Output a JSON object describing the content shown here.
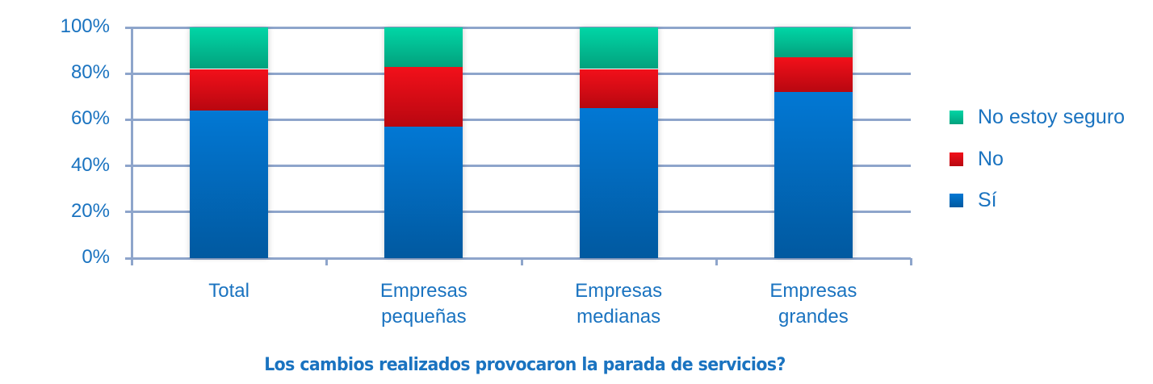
{
  "chart_data": {
    "type": "bar",
    "stacked": true,
    "percent": true,
    "title": "Los cambios realizados provocaron la parada de servicios?",
    "xlabel": "",
    "ylabel": "",
    "categories": [
      "Total",
      "Empresas pequeñas",
      "Empresas medianas",
      "Empresas grandes"
    ],
    "category_lines": [
      [
        "Total"
      ],
      [
        "Empresas",
        "pequeñas"
      ],
      [
        "Empresas",
        "medianas"
      ],
      [
        "Empresas",
        "grandes"
      ]
    ],
    "series": [
      {
        "name": "Sí",
        "color": "#0170c8",
        "values": [
          64,
          57,
          65,
          72
        ]
      },
      {
        "name": "No",
        "color": "#e00c16",
        "values": [
          18,
          26,
          17,
          15
        ]
      },
      {
        "name": "No estoy seguro",
        "color": "#01bf93",
        "values": [
          18,
          17,
          18,
          13
        ]
      }
    ],
    "ylim": [
      0,
      100
    ],
    "yticks": [
      "0%",
      "20%",
      "40%",
      "60%",
      "80%",
      "100%"
    ],
    "grid": true,
    "legend_position": "right",
    "legend_order": [
      "No estoy seguro",
      "No",
      "Sí"
    ]
  },
  "colors": {
    "text": "#1a73c0",
    "grid": "#8ea5cb",
    "si": "#0170c8",
    "no": "#e00c16",
    "no_estoy_seguro": "#01bf93"
  }
}
